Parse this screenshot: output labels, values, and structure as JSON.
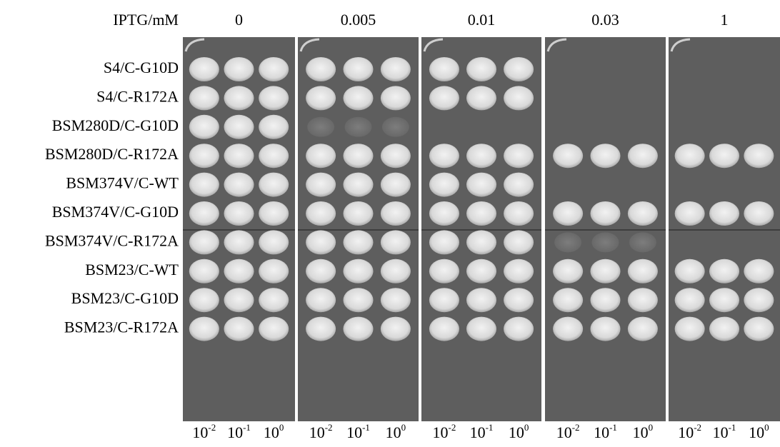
{
  "header": {
    "label": "IPTG/mM",
    "concentrations": [
      "0",
      "0.005",
      "0.01",
      "0.03",
      "1"
    ]
  },
  "strains": [
    "S4/C-G10D",
    "S4/C-R172A",
    "BSM280D/C-G10D",
    "BSM280D/C-R172A",
    "BSM374V/C-WT",
    "BSM374V/C-G10D",
    "BSM374V/C-R172A",
    "BSM23/C-WT",
    "BSM23/C-G10D",
    "BSM23/C-R172A"
  ],
  "dilutions": [
    {
      "base": "10",
      "exp": "-2"
    },
    {
      "base": "10",
      "exp": "-1"
    },
    {
      "base": "10",
      "exp": "0"
    }
  ]
}
